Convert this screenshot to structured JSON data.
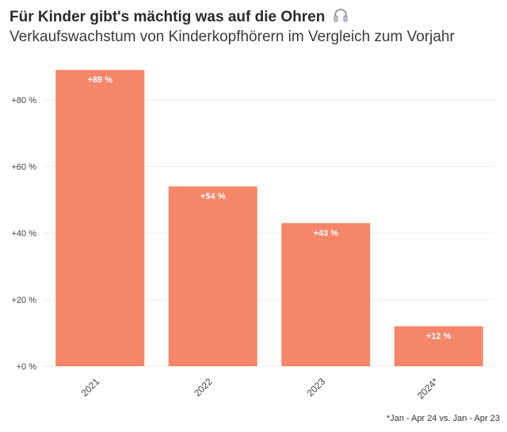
{
  "header": {
    "title": "Für Kinder gibt's mächtig was auf die Ohren",
    "title_icon": "headphones-icon",
    "subtitle": "Verkaufswachstum von Kinderkopfhörern im Vergleich zum Vorjahr"
  },
  "footnote": "*Jan - Apr 24 vs. Jan - Apr 23",
  "colors": {
    "bar": "#F5866A",
    "grid": "#EBEBEB",
    "axis_text": "#444444",
    "bar_label": "#FFFFFF"
  },
  "chart_data": {
    "type": "bar",
    "categories": [
      "2021",
      "2022",
      "2023",
      "2024*"
    ],
    "values": [
      89,
      54,
      43,
      12
    ],
    "data_labels": [
      "+89 %",
      "+54 %",
      "+43 %",
      "+12 %"
    ],
    "ylim": [
      0,
      90
    ],
    "yticks": [
      0,
      20,
      40,
      60,
      80
    ],
    "ytick_labels": [
      "+0 %",
      "+20 %",
      "+40 %",
      "+60 %",
      "+80 %"
    ],
    "title": "Für Kinder gibt's mächtig was auf die Ohren",
    "subtitle": "Verkaufswachstum von Kinderkopfhörern im Vergleich zum Vorjahr",
    "xlabel": "",
    "ylabel": "",
    "grid": true,
    "legend": "none"
  }
}
